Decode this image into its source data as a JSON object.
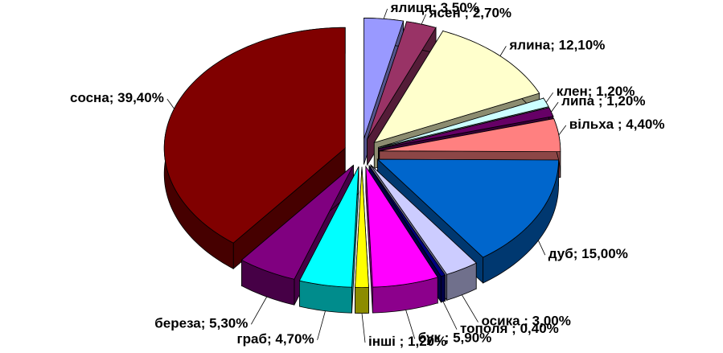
{
  "chart_data": {
    "type": "pie",
    "categories": [
      "ялиця;",
      "ясен ;",
      "ялина;",
      "клен;",
      "липа ;",
      "вільха ;",
      "дуб;",
      "осика ;",
      "тополя ;",
      "бук ;",
      "інші ;",
      "граб;",
      "береза;",
      "сосна;"
    ],
    "values": [
      3.5,
      2.7,
      12.1,
      1.2,
      1.2,
      4.4,
      15.0,
      3.0,
      0.4,
      5.9,
      1.2,
      4.7,
      5.3,
      39.4
    ],
    "value_labels": [
      "3,50%",
      "2,70%",
      "12,10%",
      "1,20%",
      "1,20%",
      "4,40%",
      "15,00%",
      "3,00%",
      "0,40%",
      "5,90%",
      "1,20%",
      "4,70%",
      "5,30%",
      "39,40%"
    ],
    "colors": [
      "#9999ff",
      "#993366",
      "#ffffcc",
      "#ccffff",
      "#660066",
      "#ff8080",
      "#0066cc",
      "#ccccff",
      "#000080",
      "#ff00ff",
      "#ffff00",
      "#00ffff",
      "#800080",
      "#800000"
    ]
  }
}
